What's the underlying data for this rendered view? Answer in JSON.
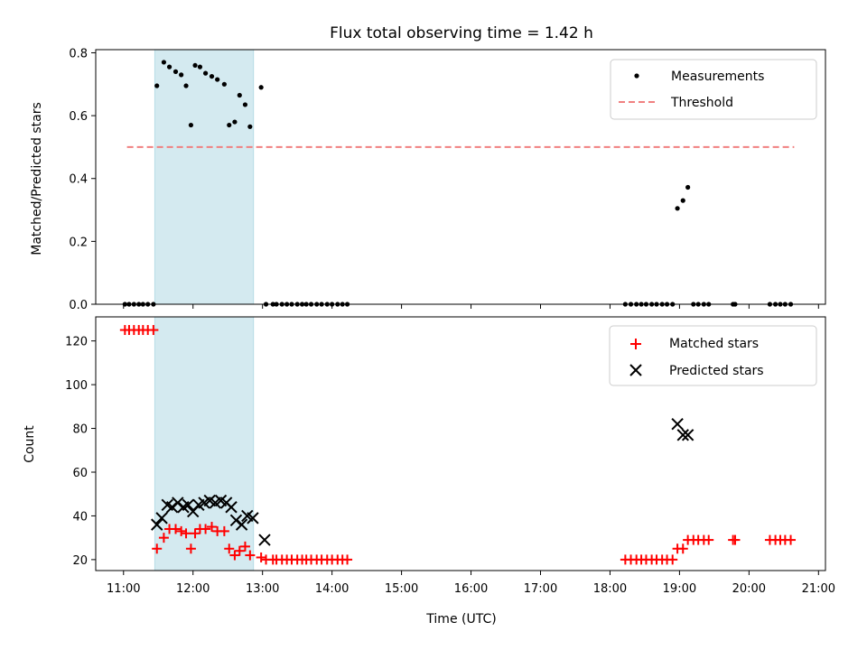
{
  "chart_data": {
    "type": "scatter",
    "title": "Flux total observing time = 1.42 h",
    "xlabel": "Time (UTC)",
    "x_unit": "hours UTC",
    "xlim": [
      10.6,
      21.1
    ],
    "xticks": [
      11,
      12,
      13,
      14,
      15,
      16,
      17,
      18,
      19,
      20,
      21
    ],
    "xtick_labels": [
      "11:00",
      "12:00",
      "13:00",
      "14:00",
      "15:00",
      "16:00",
      "17:00",
      "18:00",
      "19:00",
      "20:00",
      "21:00"
    ],
    "shaded_interval": [
      11.45,
      12.87
    ],
    "shade_color": "#d4eaf0",
    "top": {
      "ylabel": "Matched/Predicted stars",
      "ylim": [
        0,
        0.81
      ],
      "yticks": [
        0.0,
        0.2,
        0.4,
        0.6,
        0.8
      ],
      "ytick_labels": [
        "0.0",
        "0.2",
        "0.4",
        "0.6",
        "0.8"
      ],
      "threshold": {
        "name": "Threshold",
        "value": 0.5,
        "x_range": [
          11.05,
          20.65
        ],
        "color": "#f08080"
      },
      "legend_location": "upper right",
      "series": [
        {
          "name": "Measurements",
          "marker": "dot",
          "color": "#000000",
          "x": [
            11.02,
            11.08,
            11.15,
            11.22,
            11.28,
            11.35,
            11.43,
            11.48,
            11.58,
            11.66,
            11.75,
            11.83,
            11.9,
            11.97,
            12.03,
            12.1,
            12.18,
            12.27,
            12.35,
            12.45,
            12.52,
            12.6,
            12.67,
            12.75,
            12.82,
            12.98,
            13.05,
            13.15,
            13.2,
            13.28,
            13.35,
            13.42,
            13.5,
            13.57,
            13.63,
            13.7,
            13.78,
            13.85,
            13.93,
            14.0,
            14.08,
            14.15,
            14.22,
            18.22,
            18.3,
            18.38,
            18.45,
            18.52,
            18.6,
            18.67,
            18.75,
            18.82,
            18.9,
            18.97,
            19.05,
            19.12,
            19.2,
            19.27,
            19.35,
            19.42,
            19.77,
            19.8,
            20.3,
            20.38,
            20.45,
            20.52,
            20.6
          ],
          "y": [
            0,
            0,
            0,
            0,
            0,
            0,
            0,
            0.695,
            0.77,
            0.755,
            0.74,
            0.73,
            0.695,
            0.57,
            0.76,
            0.755,
            0.735,
            0.725,
            0.715,
            0.7,
            0.57,
            0.58,
            0.665,
            0.635,
            0.565,
            0.69,
            0,
            0,
            0,
            0,
            0,
            0,
            0,
            0,
            0,
            0,
            0,
            0,
            0,
            0,
            0,
            0,
            0,
            0,
            0,
            0,
            0,
            0,
            0,
            0,
            0,
            0,
            0,
            0.305,
            0.33,
            0.372,
            0,
            0,
            0,
            0,
            0,
            0,
            0,
            0,
            0,
            0,
            0
          ]
        }
      ]
    },
    "bottom": {
      "ylabel": "Count",
      "ylim": [
        15,
        131
      ],
      "yticks": [
        20,
        40,
        60,
        80,
        100,
        120
      ],
      "ytick_labels": [
        "20",
        "40",
        "60",
        "80",
        "100",
        "120"
      ],
      "legend_location": "upper right",
      "series": [
        {
          "name": "Matched stars",
          "marker": "plus",
          "color": "#ff0000",
          "x": [
            11.02,
            11.08,
            11.15,
            11.22,
            11.28,
            11.35,
            11.43,
            11.48,
            11.58,
            11.66,
            11.75,
            11.83,
            11.9,
            11.97,
            12.03,
            12.1,
            12.18,
            12.27,
            12.35,
            12.45,
            12.52,
            12.6,
            12.67,
            12.75,
            12.82,
            12.98,
            13.05,
            13.15,
            13.2,
            13.28,
            13.35,
            13.42,
            13.5,
            13.57,
            13.63,
            13.7,
            13.78,
            13.85,
            13.93,
            14.0,
            14.08,
            14.15,
            14.22,
            18.22,
            18.3,
            18.38,
            18.45,
            18.52,
            18.6,
            18.67,
            18.75,
            18.82,
            18.9,
            18.97,
            19.05,
            19.12,
            19.2,
            19.27,
            19.35,
            19.42,
            19.77,
            19.8,
            20.3,
            20.38,
            20.45,
            20.52,
            20.6
          ],
          "y": [
            125,
            125,
            125,
            125,
            125,
            125,
            125,
            25,
            30,
            34,
            34,
            33,
            32,
            25,
            32,
            34,
            34,
            35,
            33,
            33,
            25,
            22,
            24,
            26,
            22,
            21,
            20,
            20,
            20,
            20,
            20,
            20,
            20,
            20,
            20,
            20,
            20,
            20,
            20,
            20,
            20,
            20,
            20,
            20,
            20,
            20,
            20,
            20,
            20,
            20,
            20,
            20,
            20,
            25,
            25,
            29,
            29,
            29,
            29,
            29,
            29,
            29,
            29,
            29,
            29,
            29,
            29
          ]
        },
        {
          "name": "Predicted stars",
          "marker": "x",
          "color": "#000000",
          "x": [
            11.48,
            11.55,
            11.63,
            11.7,
            11.78,
            11.86,
            11.93,
            12.0,
            12.08,
            12.16,
            12.24,
            12.32,
            12.4,
            12.48,
            12.55,
            12.62,
            12.7,
            12.78,
            12.86,
            13.03,
            18.97,
            19.05,
            19.12
          ],
          "y": [
            36,
            39,
            45,
            44,
            46,
            44,
            45,
            42,
            45,
            46,
            47,
            46,
            47,
            46,
            44,
            38,
            36,
            40,
            39,
            29,
            82,
            77,
            77
          ]
        }
      ]
    }
  }
}
